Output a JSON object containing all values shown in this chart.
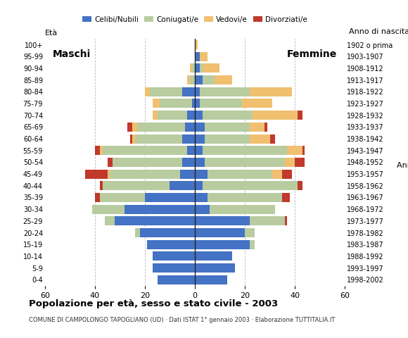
{
  "age_groups": [
    "0-4",
    "5-9",
    "10-14",
    "15-19",
    "20-24",
    "25-29",
    "30-34",
    "35-39",
    "40-44",
    "45-49",
    "50-54",
    "55-59",
    "60-64",
    "65-69",
    "70-74",
    "75-79",
    "80-84",
    "85-89",
    "90-94",
    "95-99",
    "100+"
  ],
  "male": {
    "celibe": [
      15,
      17,
      17,
      19,
      22,
      32,
      28,
      20,
      10,
      6,
      5,
      3,
      5,
      4,
      3,
      1,
      5,
      0,
      0,
      0,
      0
    ],
    "coniugato": [
      0,
      0,
      0,
      0,
      2,
      4,
      13,
      18,
      27,
      28,
      28,
      34,
      19,
      19,
      12,
      13,
      13,
      2,
      1,
      0,
      0
    ],
    "vedovo": [
      0,
      0,
      0,
      0,
      0,
      0,
      0,
      0,
      0,
      1,
      0,
      1,
      1,
      2,
      2,
      3,
      2,
      1,
      1,
      0,
      0
    ],
    "divorziato": [
      0,
      0,
      0,
      0,
      0,
      0,
      0,
      2,
      1,
      9,
      2,
      2,
      1,
      2,
      0,
      0,
      0,
      0,
      0,
      0,
      0
    ]
  },
  "female": {
    "nubile": [
      13,
      16,
      15,
      22,
      20,
      22,
      6,
      5,
      3,
      5,
      4,
      3,
      4,
      4,
      3,
      2,
      2,
      3,
      2,
      2,
      0
    ],
    "coniugata": [
      0,
      0,
      0,
      2,
      4,
      14,
      26,
      30,
      38,
      26,
      32,
      34,
      18,
      18,
      20,
      17,
      20,
      5,
      1,
      0,
      0
    ],
    "vedova": [
      0,
      0,
      0,
      0,
      0,
      0,
      0,
      0,
      0,
      4,
      4,
      6,
      8,
      6,
      18,
      12,
      17,
      7,
      7,
      3,
      1
    ],
    "divorziata": [
      0,
      0,
      0,
      0,
      0,
      1,
      0,
      3,
      2,
      4,
      4,
      1,
      2,
      1,
      2,
      0,
      0,
      0,
      0,
      0,
      0
    ]
  },
  "birth_years": [
    "1998-2002",
    "1993-1997",
    "1988-1992",
    "1983-1987",
    "1978-1982",
    "1973-1977",
    "1968-1972",
    "1963-1967",
    "1958-1962",
    "1953-1957",
    "1948-1952",
    "1943-1947",
    "1938-1942",
    "1933-1937",
    "1928-1932",
    "1923-1927",
    "1918-1922",
    "1913-1917",
    "1908-1912",
    "1903-1907",
    "1902 o prima"
  ],
  "color_celibe": "#4472c4",
  "color_coniugato": "#b8cca0",
  "color_vedovo": "#f0c070",
  "color_divorziato": "#c0392b",
  "title": "Popolazione per età, sesso e stato civile - 2003",
  "subtitle": "COMUNE DI CAMPOLONGO TAPOGLIANO (UD) · Dati ISTAT 1° gennaio 2003 · Elaborazione TUTTITALIA.IT",
  "xlabel_left": "Età",
  "xlabel_right": "Anno di nascita",
  "label_maschi": "Maschi",
  "label_femmine": "Femmine",
  "legend_labels": [
    "Celibi/Nubili",
    "Coniugati/e",
    "Vedovi/e",
    "Divorziati/e"
  ],
  "xlim": 60,
  "background_color": "#ffffff",
  "grid_color": "#bbbbbb"
}
